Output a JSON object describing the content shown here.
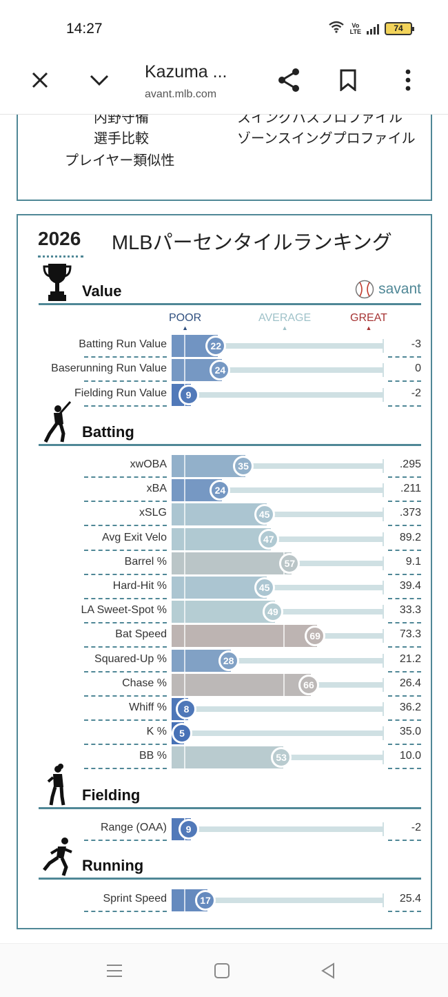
{
  "status": {
    "time": "14:27",
    "battery": "74",
    "volte_top": "Vo",
    "volte_bottom": "LTE"
  },
  "toolbar": {
    "title": "Kazuma ...",
    "url": "avant.mlb.com"
  },
  "top_links": [
    "内野守備",
    "選手比較",
    "プレイヤー類似性",
    "スイングパスプロファイル",
    "ゾーンスイングプロファイル"
  ],
  "panel": {
    "year": "2026",
    "title": "MLBパーセンタイルランキング",
    "brand": "savant"
  },
  "scale": {
    "poor": "POOR",
    "average": "AVERAGE",
    "great": "GREAT"
  },
  "sections": {
    "value": "Value",
    "batting": "Batting",
    "fielding": "Fielding",
    "running": "Running"
  },
  "metrics": {
    "value": [
      {
        "label": "Batting Run Value",
        "percentile": 22,
        "value": "-3"
      },
      {
        "label": "Baserunning Run Value",
        "percentile": 24,
        "value": "0"
      },
      {
        "label": "Fielding Run Value",
        "percentile": 9,
        "value": "-2"
      }
    ],
    "batting": [
      {
        "label": "xwOBA",
        "percentile": 35,
        "value": ".295"
      },
      {
        "label": "xBA",
        "percentile": 24,
        "value": ".211"
      },
      {
        "label": "xSLG",
        "percentile": 45,
        "value": ".373"
      },
      {
        "label": "Avg Exit Velo",
        "percentile": 47,
        "value": "89.2"
      },
      {
        "label": "Barrel %",
        "percentile": 57,
        "value": "9.1"
      },
      {
        "label": "Hard-Hit %",
        "percentile": 45,
        "value": "39.4"
      },
      {
        "label": "LA Sweet-Spot %",
        "percentile": 49,
        "value": "33.3"
      },
      {
        "label": "Bat Speed",
        "percentile": 69,
        "value": "73.3"
      },
      {
        "label": "Squared-Up %",
        "percentile": 28,
        "value": "21.2"
      },
      {
        "label": "Chase %",
        "percentile": 66,
        "value": "26.4"
      },
      {
        "label": "Whiff %",
        "percentile": 8,
        "value": "36.2"
      },
      {
        "label": "K %",
        "percentile": 5,
        "value": "35.0"
      },
      {
        "label": "BB %",
        "percentile": 53,
        "value": "10.0"
      }
    ],
    "fielding": [
      {
        "label": "Range (OAA)",
        "percentile": 9,
        "value": "-2"
      }
    ],
    "running": [
      {
        "label": "Sprint Speed",
        "percentile": 17,
        "value": "25.4"
      }
    ]
  },
  "colors": {
    "accent": "#4f8796",
    "poor": "#3a66b3",
    "average": "#b8cfd4",
    "great": "#c4877a"
  }
}
